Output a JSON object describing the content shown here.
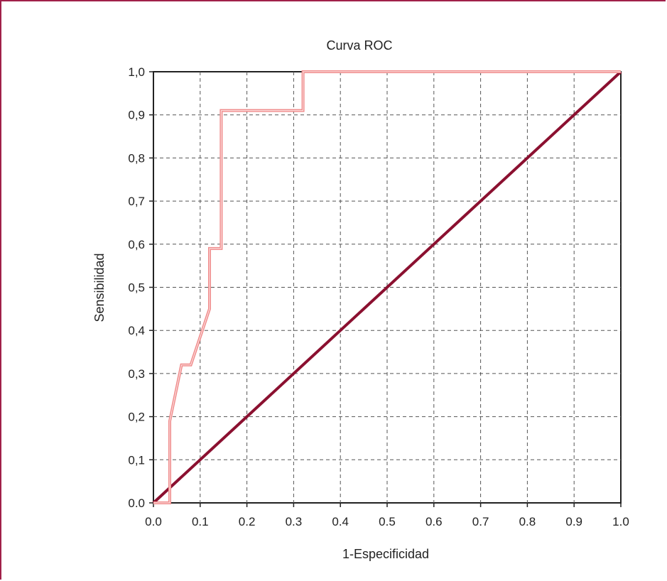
{
  "chart_data": {
    "type": "line",
    "title": "Curva ROC",
    "xlabel": "1-Especificidad",
    "ylabel": "Sensibilidad",
    "xlim": [
      0.0,
      1.0
    ],
    "ylim": [
      0.0,
      1.0
    ],
    "grid": true,
    "x_ticks": [
      "0.0",
      "0.1",
      "0.2",
      "0.3",
      "0.4",
      "0.5",
      "0.6",
      "0.7",
      "0.8",
      "0.9",
      "1.0"
    ],
    "y_ticks": [
      "0.0",
      "0,1",
      "0,2",
      "0,3",
      "0,4",
      "0,5",
      "0,6",
      "0,7",
      "0,8",
      "0,9",
      "1,0"
    ],
    "series": [
      {
        "color": "#f08a8a",
        "x": [
          0.0,
          0.035,
          0.035,
          0.06,
          0.08,
          0.12,
          0.12,
          0.145,
          0.145,
          0.32,
          0.32,
          1.0
        ],
        "y": [
          0.0,
          0.0,
          0.19,
          0.32,
          0.32,
          0.45,
          0.59,
          0.59,
          0.91,
          0.91,
          1.0,
          1.0
        ]
      },
      {
        "color": "#8b1030",
        "x": [
          0.0,
          1.0
        ],
        "y": [
          0.0,
          1.0
        ]
      }
    ]
  }
}
